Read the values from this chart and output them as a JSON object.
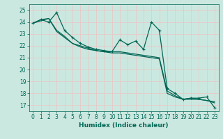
{
  "title": "",
  "xlabel": "Humidex (Indice chaleur)",
  "ylabel": "",
  "bg_color": "#cbe8e0",
  "grid_color": "#e8c8c8",
  "line_color": "#006655",
  "marker_color": "#006655",
  "xlim": [
    -0.5,
    23.5
  ],
  "ylim": [
    16.5,
    25.5
  ],
  "yticks": [
    17,
    18,
    19,
    20,
    21,
    22,
    23,
    24,
    25
  ],
  "xticks": [
    0,
    1,
    2,
    3,
    4,
    5,
    6,
    7,
    8,
    9,
    10,
    11,
    12,
    13,
    14,
    15,
    16,
    17,
    18,
    19,
    20,
    21,
    22,
    23
  ],
  "series": [
    [
      23.9,
      24.2,
      24.0,
      24.8,
      23.3,
      22.7,
      22.2,
      21.9,
      21.7,
      21.6,
      21.5,
      22.5,
      22.1,
      22.4,
      21.7,
      24.0,
      23.3,
      18.4,
      18.0,
      17.5,
      17.6,
      17.6,
      17.7,
      16.8
    ],
    [
      23.9,
      24.2,
      24.3,
      23.3,
      22.8,
      22.2,
      22.0,
      21.8,
      21.6,
      21.5,
      21.5,
      21.5,
      21.4,
      21.3,
      21.2,
      21.1,
      21.0,
      18.2,
      17.8,
      17.5,
      17.6,
      17.5,
      17.4,
      17.3
    ],
    [
      23.9,
      24.1,
      24.3,
      23.2,
      22.7,
      22.2,
      21.9,
      21.7,
      21.6,
      21.5,
      21.4,
      21.4,
      21.3,
      21.2,
      21.1,
      21.0,
      20.9,
      18.0,
      17.7,
      17.5,
      17.5,
      17.5,
      17.4,
      17.2
    ]
  ]
}
